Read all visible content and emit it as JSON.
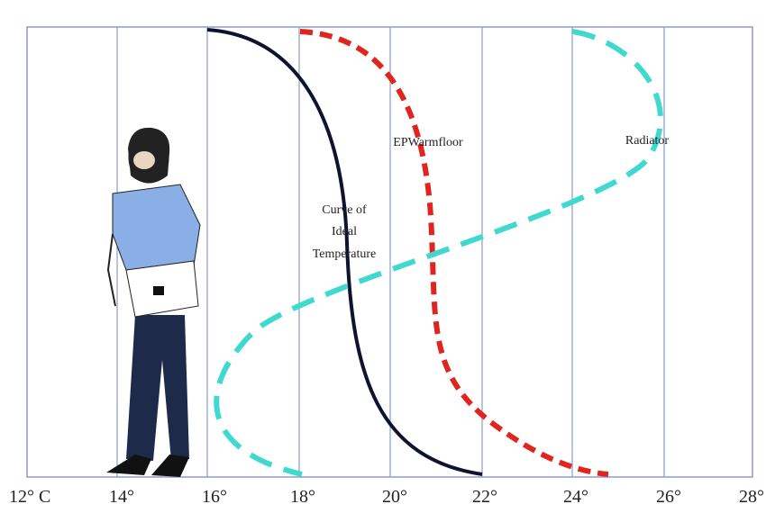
{
  "axis_labels": [
    "12° C",
    "14°",
    "16°",
    "18°",
    "20°",
    "22°",
    "24°",
    "26°",
    "28°"
  ],
  "curves": {
    "ideal": {
      "label_lines": [
        "Curve of",
        "Ideal",
        "Temperature"
      ]
    },
    "warmfloor": {
      "label": "EPWarmfloor"
    },
    "radiator": {
      "label": "Radiator"
    }
  }
}
